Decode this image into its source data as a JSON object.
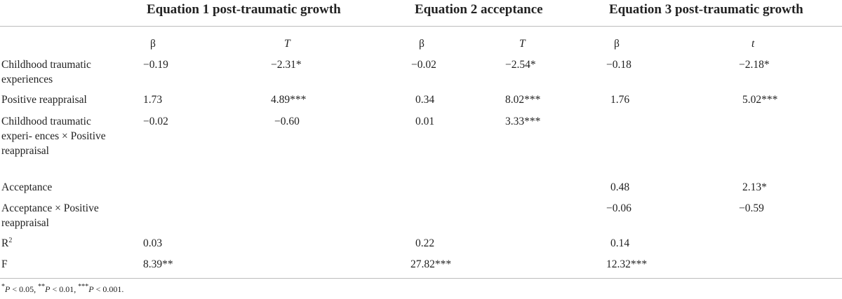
{
  "groups": [
    {
      "title": "Equation 1 post-traumatic growth",
      "beta": "β",
      "stat": "T"
    },
    {
      "title": "Equation 2 acceptance",
      "beta": "β",
      "stat": "T"
    },
    {
      "title": "Equation 3 post-traumatic growth",
      "beta": "β",
      "stat": "t"
    }
  ],
  "rows": [
    {
      "label": "Childhood traumatic experiences",
      "values": [
        "−0.19",
        "−2.31*",
        "−0.02",
        "−2.54*",
        "−0.18",
        "−2.18*"
      ]
    },
    {
      "label": "Positive reappraisal",
      "values": [
        "1.73",
        "4.89***",
        "0.34",
        "8.02***",
        "1.76",
        "5.02***"
      ]
    },
    {
      "label": "Childhood traumatic experi- ences × Positive reappraisal",
      "values": [
        "−0.02",
        "−0.60",
        "0.01",
        "3.33***",
        "",
        ""
      ]
    },
    {
      "label": "Acceptance",
      "values": [
        "",
        "",
        "",
        "",
        "0.48",
        "2.13*"
      ]
    },
    {
      "label": "Acceptance × Positive reappraisal",
      "values": [
        "",
        "",
        "",
        "",
        "−0.06",
        "−0.59"
      ]
    },
    {
      "label_main": "R",
      "label_sup": "2",
      "values": [
        "0.03",
        "",
        "0.22",
        "",
        "0.14",
        ""
      ]
    },
    {
      "label": "F",
      "values": [
        "8.39**",
        "",
        "27.82***",
        "",
        "12.32***",
        ""
      ]
    }
  ],
  "footnote": {
    "s1": "*",
    "p1": "P",
    "t1": " < 0.05, ",
    "s2": "**",
    "p2": "P",
    "t2": " < 0.01, ",
    "s3": "***",
    "p3": "P",
    "t3": " < 0.001."
  }
}
